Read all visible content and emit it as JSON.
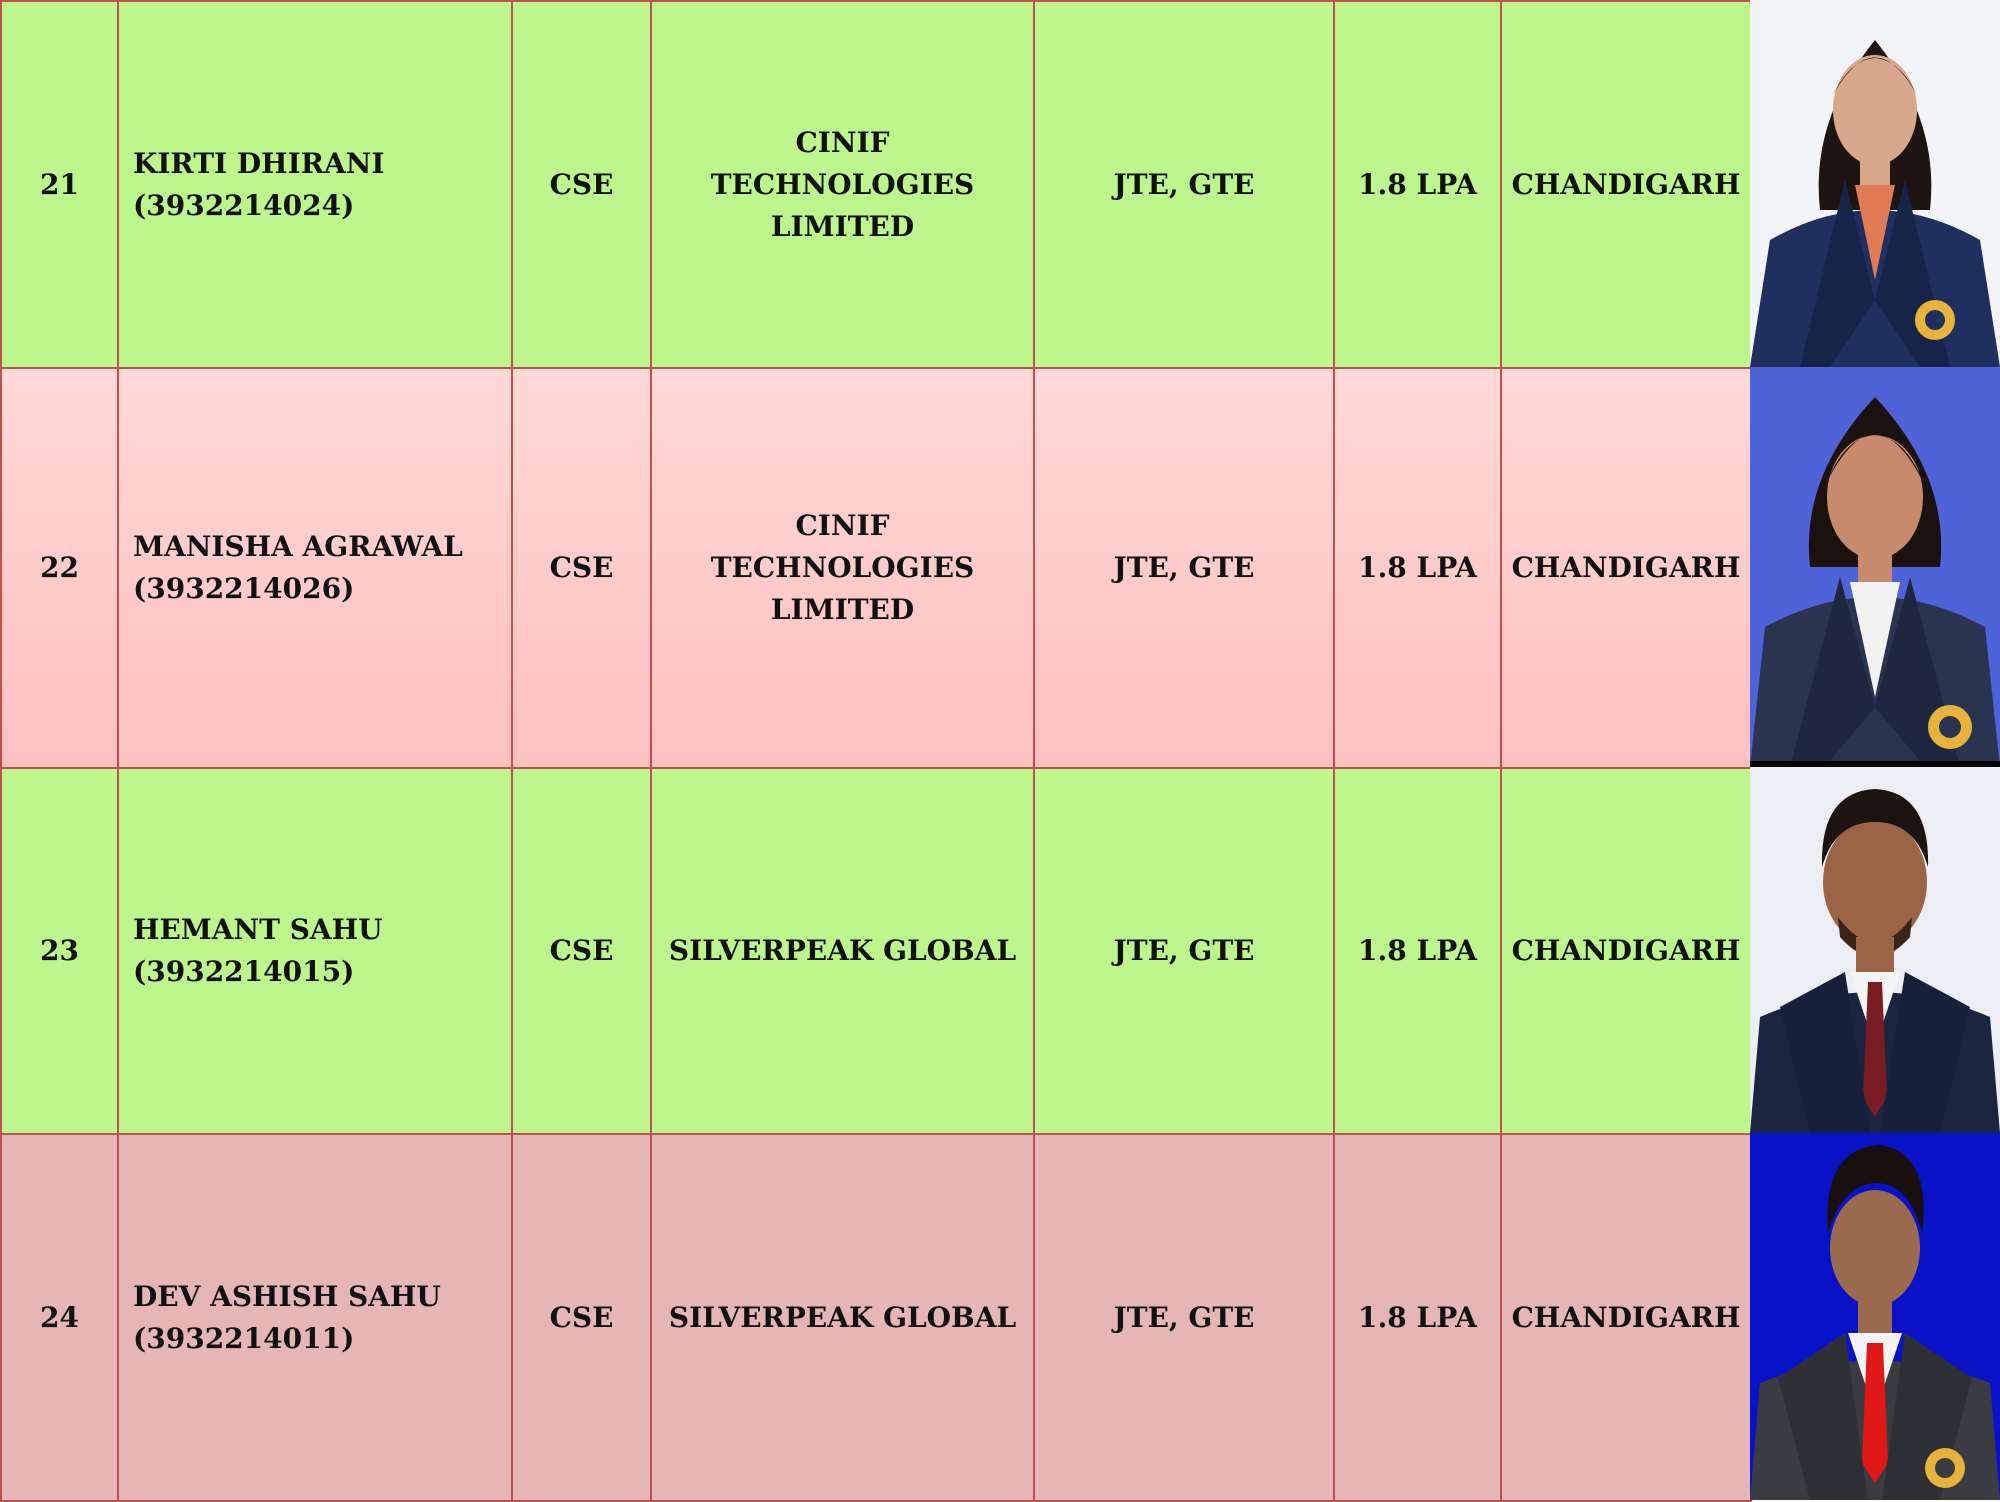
{
  "rows": [
    {
      "sno": "21",
      "name": "KIRTI DHIRANI",
      "roll": "(3932214024)",
      "branch": "CSE",
      "company_line1": "CINIF TECHNOLOGIES",
      "company_line2": "LIMITED",
      "profile": "JTE, GTE",
      "package": "1.8 LPA",
      "location": "CHANDIGARH",
      "photo": "female-student-photo",
      "bg": "#bcf68d"
    },
    {
      "sno": "22",
      "name": "MANISHA AGRAWAL",
      "roll": "(3932214026)",
      "branch": "CSE",
      "company_line1": "CINIF TECHNOLOGIES",
      "company_line2": "LIMITED",
      "profile": "JTE, GTE",
      "package": "1.8 LPA",
      "location": "CHANDIGARH",
      "photo": "female-student-photo",
      "bg": "#ffcccc"
    },
    {
      "sno": "23",
      "name": "HEMANT SAHU",
      "roll": "(3932214015)",
      "branch": "CSE",
      "company_line1": "SILVERPEAK GLOBAL",
      "company_line2": "",
      "profile": "JTE, GTE",
      "package": "1.8 LPA",
      "location": "CHANDIGARH",
      "photo": "male-student-photo",
      "bg": "#bcf68d"
    },
    {
      "sno": "24",
      "name": "DEV ASHISH SAHU",
      "roll": "(3932214011)",
      "branch": "CSE",
      "company_line1": "SILVERPEAK GLOBAL",
      "company_line2": "",
      "profile": "JTE, GTE",
      "package": "1.8 LPA",
      "location": "CHANDIGARH",
      "photo": "male-student-photo",
      "bg": "#e6b5b6"
    }
  ],
  "colors": {
    "border": "#c0504d",
    "green": "#bcf68d",
    "pink": "#ffcccc",
    "rose": "#e6b5b6"
  }
}
